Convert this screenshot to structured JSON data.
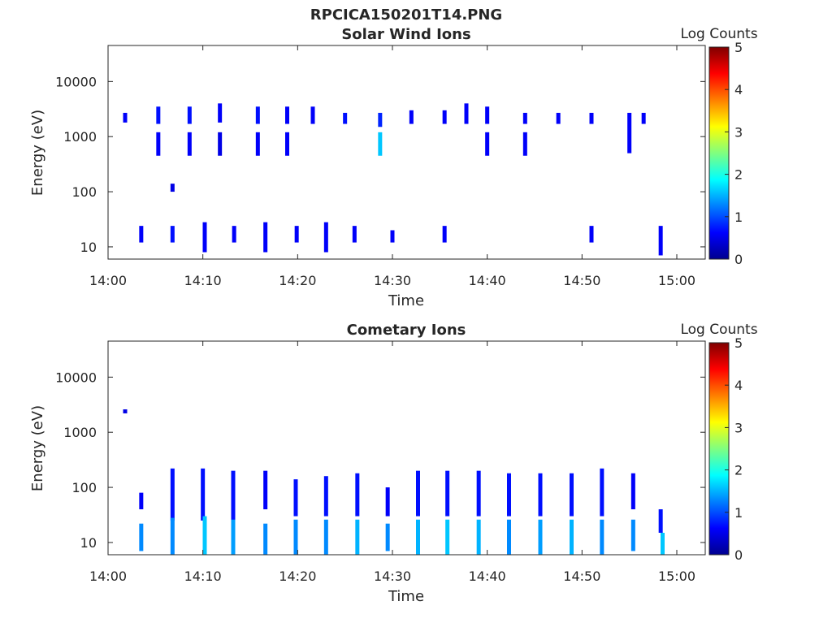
{
  "figure_title": "RPCICA150201T14.PNG",
  "chart_data": [
    {
      "type": "heatmap",
      "title": "Solar Wind Ions",
      "xlabel": "Time",
      "ylabel": "Energy (eV)",
      "x_ticks": [
        "14:00",
        "14:10",
        "14:20",
        "14:30",
        "14:40",
        "14:50",
        "15:00"
      ],
      "y_ticks": [
        "10",
        "100",
        "1000",
        "10000"
      ],
      "y_scale": "log",
      "xlim": [
        "14:00",
        "15:03"
      ],
      "ylim": [
        6,
        45000
      ],
      "colorbar": {
        "label": "Log Counts",
        "ticks": [
          "0",
          "1",
          "2",
          "3",
          "4",
          "5"
        ],
        "range": [
          0,
          5
        ],
        "colormap": "jet"
      },
      "clusters": [
        {
          "time_min": 1.8,
          "energy_lo": 1800,
          "energy_hi": 2700,
          "log_counts": 0.6
        },
        {
          "time_min": 3.5,
          "energy_lo": 12,
          "energy_hi": 24,
          "log_counts": 0.6
        },
        {
          "time_min": 5.3,
          "energy_lo": 1700,
          "energy_hi": 3500,
          "log_counts": 0.7
        },
        {
          "time_min": 5.3,
          "energy_lo": 450,
          "energy_hi": 1200,
          "log_counts": 0.6
        },
        {
          "time_min": 6.8,
          "energy_lo": 100,
          "energy_hi": 140,
          "log_counts": 0.5
        },
        {
          "time_min": 6.8,
          "energy_lo": 12,
          "energy_hi": 24,
          "log_counts": 0.7
        },
        {
          "time_min": 8.6,
          "energy_lo": 1700,
          "energy_hi": 3500,
          "log_counts": 0.7
        },
        {
          "time_min": 8.6,
          "energy_lo": 450,
          "energy_hi": 1200,
          "log_counts": 0.6
        },
        {
          "time_min": 10.2,
          "energy_lo": 8,
          "energy_hi": 28,
          "log_counts": 0.6
        },
        {
          "time_min": 11.8,
          "energy_lo": 1800,
          "energy_hi": 4000,
          "log_counts": 0.6
        },
        {
          "time_min": 11.8,
          "energy_lo": 450,
          "energy_hi": 1200,
          "log_counts": 0.5
        },
        {
          "time_min": 13.3,
          "energy_lo": 12,
          "energy_hi": 24,
          "log_counts": 0.6
        },
        {
          "time_min": 15.8,
          "energy_lo": 1700,
          "energy_hi": 3500,
          "log_counts": 0.7
        },
        {
          "time_min": 15.8,
          "energy_lo": 450,
          "energy_hi": 1200,
          "log_counts": 0.6
        },
        {
          "time_min": 16.6,
          "energy_lo": 8,
          "energy_hi": 28,
          "log_counts": 0.6
        },
        {
          "time_min": 18.9,
          "energy_lo": 1700,
          "energy_hi": 3500,
          "log_counts": 0.6
        },
        {
          "time_min": 18.9,
          "energy_lo": 450,
          "energy_hi": 1200,
          "log_counts": 0.6
        },
        {
          "time_min": 19.9,
          "energy_lo": 12,
          "energy_hi": 24,
          "log_counts": 0.6
        },
        {
          "time_min": 21.6,
          "energy_lo": 1700,
          "energy_hi": 3500,
          "log_counts": 0.6
        },
        {
          "time_min": 23.0,
          "energy_lo": 8,
          "energy_hi": 28,
          "log_counts": 0.6
        },
        {
          "time_min": 25.0,
          "energy_lo": 1700,
          "energy_hi": 2700,
          "log_counts": 0.7
        },
        {
          "time_min": 26.0,
          "energy_lo": 12,
          "energy_hi": 24,
          "log_counts": 0.6
        },
        {
          "time_min": 28.7,
          "energy_lo": 1500,
          "energy_hi": 2700,
          "log_counts": 0.8
        },
        {
          "time_min": 28.7,
          "energy_lo": 450,
          "energy_hi": 1200,
          "log_counts": 1.6
        },
        {
          "time_min": 30.0,
          "energy_lo": 12,
          "energy_hi": 20,
          "log_counts": 0.6
        },
        {
          "time_min": 32.0,
          "energy_lo": 1700,
          "energy_hi": 3000,
          "log_counts": 0.6
        },
        {
          "time_min": 35.5,
          "energy_lo": 1700,
          "energy_hi": 3000,
          "log_counts": 0.6
        },
        {
          "time_min": 35.5,
          "energy_lo": 12,
          "energy_hi": 24,
          "log_counts": 0.6
        },
        {
          "time_min": 37.8,
          "energy_lo": 1700,
          "energy_hi": 4000,
          "log_counts": 0.6
        },
        {
          "time_min": 40.0,
          "energy_lo": 1700,
          "energy_hi": 3500,
          "log_counts": 0.6
        },
        {
          "time_min": 40.0,
          "energy_lo": 450,
          "energy_hi": 1200,
          "log_counts": 0.6
        },
        {
          "time_min": 44.0,
          "energy_lo": 1700,
          "energy_hi": 2700,
          "log_counts": 0.6
        },
        {
          "time_min": 44.0,
          "energy_lo": 450,
          "energy_hi": 1200,
          "log_counts": 0.6
        },
        {
          "time_min": 47.5,
          "energy_lo": 1700,
          "energy_hi": 2700,
          "log_counts": 0.6
        },
        {
          "time_min": 51.0,
          "energy_lo": 1700,
          "energy_hi": 2700,
          "log_counts": 0.6
        },
        {
          "time_min": 51.0,
          "energy_lo": 12,
          "energy_hi": 24,
          "log_counts": 0.6
        },
        {
          "time_min": 55.0,
          "energy_lo": 500,
          "energy_hi": 2700,
          "log_counts": 0.6
        },
        {
          "time_min": 56.5,
          "energy_lo": 1700,
          "energy_hi": 2700,
          "log_counts": 0.6
        },
        {
          "time_min": 58.3,
          "energy_lo": 7,
          "energy_hi": 24,
          "log_counts": 0.6
        }
      ]
    },
    {
      "type": "heatmap",
      "title": "Cometary Ions",
      "xlabel": "Time",
      "ylabel": "Energy (eV)",
      "x_ticks": [
        "14:00",
        "14:10",
        "14:20",
        "14:30",
        "14:40",
        "14:50",
        "15:00"
      ],
      "y_ticks": [
        "10",
        "100",
        "1000",
        "10000"
      ],
      "y_scale": "log",
      "xlim": [
        "14:00",
        "15:03"
      ],
      "ylim": [
        6,
        45000
      ],
      "colorbar": {
        "label": "Log Counts",
        "ticks": [
          "0",
          "1",
          "2",
          "3",
          "4",
          "5"
        ],
        "range": [
          0,
          5
        ],
        "colormap": "jet"
      },
      "clusters": [
        {
          "time_min": 1.8,
          "energy_lo": 2200,
          "energy_hi": 2600,
          "log_counts": 0.5
        },
        {
          "time_min": 3.5,
          "energy_lo": 40,
          "energy_hi": 80,
          "log_counts": 0.6
        },
        {
          "time_min": 3.5,
          "energy_lo": 7,
          "energy_hi": 22,
          "log_counts": 1.3
        },
        {
          "time_min": 6.8,
          "energy_lo": 25,
          "energy_hi": 220,
          "log_counts": 0.7
        },
        {
          "time_min": 6.8,
          "energy_lo": 6,
          "energy_hi": 28,
          "log_counts": 1.3
        },
        {
          "time_min": 10.0,
          "energy_lo": 25,
          "energy_hi": 220,
          "log_counts": 0.7
        },
        {
          "time_min": 10.2,
          "energy_lo": 6,
          "energy_hi": 30,
          "log_counts": 1.6
        },
        {
          "time_min": 13.2,
          "energy_lo": 25,
          "energy_hi": 200,
          "log_counts": 0.7
        },
        {
          "time_min": 13.2,
          "energy_lo": 6,
          "energy_hi": 26,
          "log_counts": 1.4
        },
        {
          "time_min": 16.6,
          "energy_lo": 40,
          "energy_hi": 200,
          "log_counts": 0.6
        },
        {
          "time_min": 16.6,
          "energy_lo": 6,
          "energy_hi": 22,
          "log_counts": 1.3
        },
        {
          "time_min": 19.8,
          "energy_lo": 30,
          "energy_hi": 140,
          "log_counts": 0.7
        },
        {
          "time_min": 19.8,
          "energy_lo": 6,
          "energy_hi": 26,
          "log_counts": 1.3
        },
        {
          "time_min": 23.0,
          "energy_lo": 30,
          "energy_hi": 160,
          "log_counts": 0.7
        },
        {
          "time_min": 23.0,
          "energy_lo": 6,
          "energy_hi": 26,
          "log_counts": 1.3
        },
        {
          "time_min": 26.3,
          "energy_lo": 30,
          "energy_hi": 180,
          "log_counts": 0.7
        },
        {
          "time_min": 26.3,
          "energy_lo": 6,
          "energy_hi": 26,
          "log_counts": 1.5
        },
        {
          "time_min": 29.5,
          "energy_lo": 30,
          "energy_hi": 100,
          "log_counts": 0.6
        },
        {
          "time_min": 29.5,
          "energy_lo": 7,
          "energy_hi": 22,
          "log_counts": 1.3
        },
        {
          "time_min": 32.7,
          "energy_lo": 30,
          "energy_hi": 200,
          "log_counts": 0.7
        },
        {
          "time_min": 32.7,
          "energy_lo": 6,
          "energy_hi": 26,
          "log_counts": 1.5
        },
        {
          "time_min": 35.8,
          "energy_lo": 30,
          "energy_hi": 200,
          "log_counts": 0.7
        },
        {
          "time_min": 35.8,
          "energy_lo": 6,
          "energy_hi": 26,
          "log_counts": 1.6
        },
        {
          "time_min": 39.1,
          "energy_lo": 30,
          "energy_hi": 200,
          "log_counts": 0.7
        },
        {
          "time_min": 39.1,
          "energy_lo": 6,
          "energy_hi": 26,
          "log_counts": 1.5
        },
        {
          "time_min": 42.3,
          "energy_lo": 30,
          "energy_hi": 180,
          "log_counts": 0.7
        },
        {
          "time_min": 42.3,
          "energy_lo": 6,
          "energy_hi": 26,
          "log_counts": 1.3
        },
        {
          "time_min": 45.6,
          "energy_lo": 30,
          "energy_hi": 180,
          "log_counts": 0.7
        },
        {
          "time_min": 45.6,
          "energy_lo": 6,
          "energy_hi": 26,
          "log_counts": 1.4
        },
        {
          "time_min": 48.9,
          "energy_lo": 30,
          "energy_hi": 180,
          "log_counts": 0.7
        },
        {
          "time_min": 48.9,
          "energy_lo": 6,
          "energy_hi": 26,
          "log_counts": 1.5
        },
        {
          "time_min": 52.1,
          "energy_lo": 30,
          "energy_hi": 220,
          "log_counts": 0.7
        },
        {
          "time_min": 52.1,
          "energy_lo": 6,
          "energy_hi": 26,
          "log_counts": 1.3
        },
        {
          "time_min": 55.4,
          "energy_lo": 40,
          "energy_hi": 180,
          "log_counts": 0.6
        },
        {
          "time_min": 55.4,
          "energy_lo": 7,
          "energy_hi": 26,
          "log_counts": 1.3
        },
        {
          "time_min": 58.3,
          "energy_lo": 15,
          "energy_hi": 40,
          "log_counts": 0.7
        },
        {
          "time_min": 58.5,
          "energy_lo": 6,
          "energy_hi": 15,
          "log_counts": 1.6
        }
      ]
    }
  ]
}
